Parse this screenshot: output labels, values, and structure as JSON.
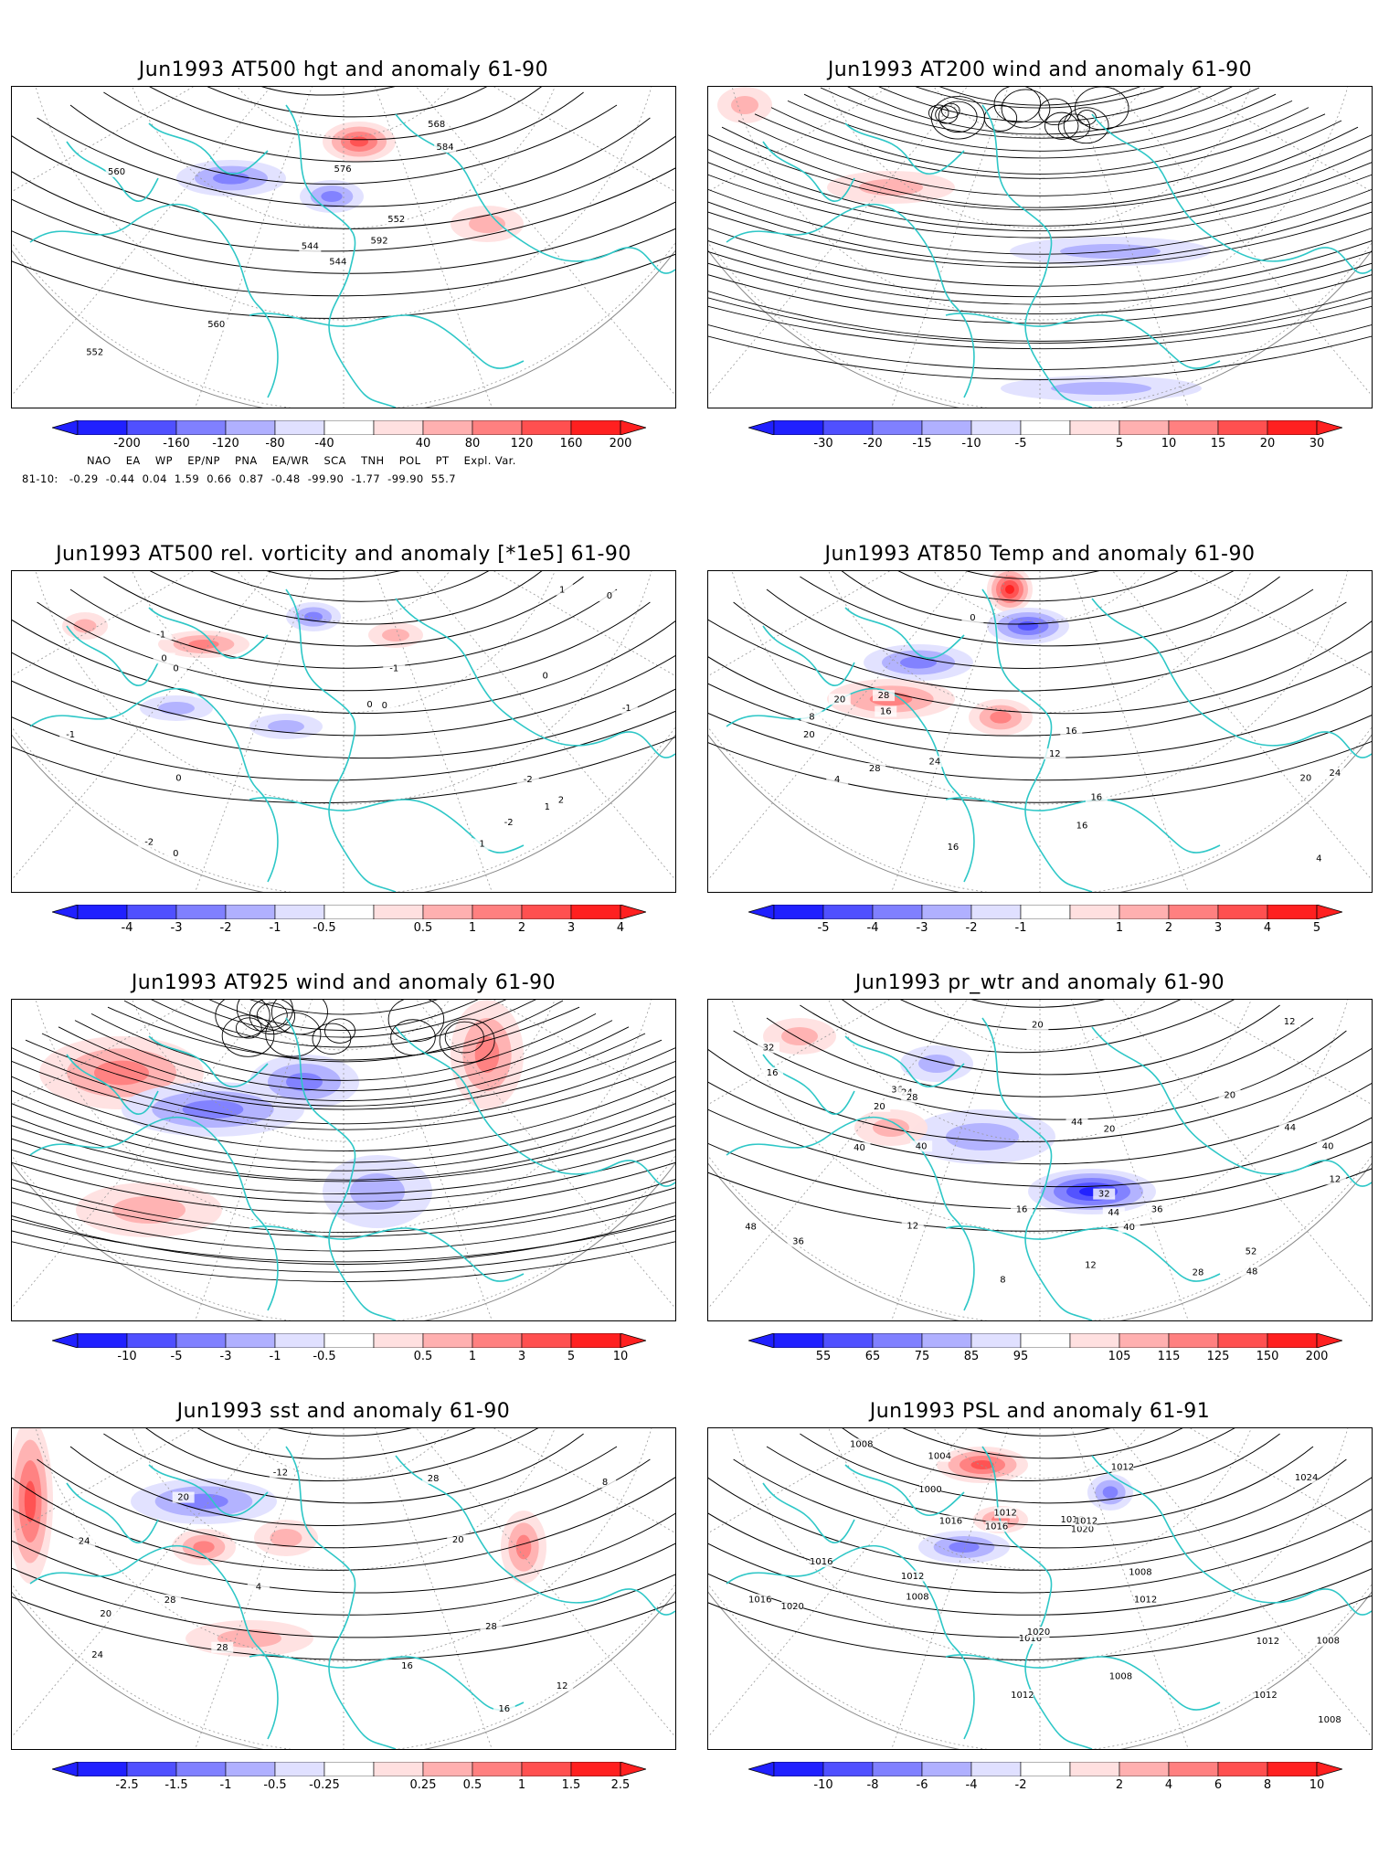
{
  "panels": [
    {
      "id": "p1",
      "title": "Jun1993 AT500 hgt and anomaly 61-90",
      "kind": "contour",
      "labels": [
        "544",
        "560",
        "544",
        "552",
        "552",
        "560",
        "568",
        "576",
        "584",
        "592"
      ],
      "colorbar": [
        "-200",
        "-160",
        "-120",
        "-80",
        "-40",
        "40",
        "80",
        "120",
        "160",
        "200"
      ]
    },
    {
      "id": "p2",
      "title": "Jun1993 AT200 wind and anomaly 61-90",
      "kind": "stream",
      "labels": [],
      "colorbar": [
        "-30",
        "-20",
        "-15",
        "-10",
        "-5",
        "5",
        "10",
        "15",
        "20",
        "30"
      ]
    },
    {
      "id": "p3",
      "title": "Jun1993 AT500 rel. vorticity and anomaly [*1e5] 61-90",
      "kind": "contour",
      "labels": [
        "0",
        "-2",
        "-1",
        "0",
        "1",
        "-2",
        "0",
        "2",
        "-1",
        "1",
        "0",
        "-1",
        "-2",
        "0",
        "1",
        "-1",
        "0",
        "0",
        "0"
      ],
      "colorbar": [
        "-4",
        "-3",
        "-2",
        "-1",
        "-0.5",
        "0.5",
        "1",
        "2",
        "3",
        "4"
      ]
    },
    {
      "id": "p4",
      "title": "Jun1993 AT850 Temp and anomaly 61-90",
      "kind": "contour",
      "labels": [
        "16",
        "20",
        "4",
        "0",
        "4",
        "8",
        "12",
        "16",
        "20",
        "24",
        "28",
        "24",
        "20",
        "16",
        "16",
        "28",
        "16"
      ],
      "colorbar": [
        "-5",
        "-4",
        "-3",
        "-2",
        "-1",
        "1",
        "2",
        "3",
        "4",
        "5"
      ]
    },
    {
      "id": "p5",
      "title": "Jun1993 AT925 wind and anomaly 61-90",
      "kind": "stream",
      "labels": [],
      "colorbar": [
        "-10",
        "-5",
        "-3",
        "-1",
        "-0.5",
        "0.5",
        "1",
        "3",
        "5",
        "10"
      ]
    },
    {
      "id": "p6",
      "title": "Jun1993 pr_wtr and anomaly 61-90",
      "kind": "contour",
      "labels": [
        "44",
        "52",
        "40",
        "36",
        "20",
        "12",
        "8",
        "12",
        "16",
        "20",
        "24",
        "32",
        "28",
        "20",
        "16",
        "12",
        "12",
        "20",
        "28",
        "32",
        "36",
        "40",
        "44",
        "48",
        "40",
        "44",
        "36",
        "40",
        "48"
      ],
      "colorbar": [
        "55",
        "65",
        "75",
        "85",
        "95",
        "105",
        "115",
        "125",
        "150",
        "200"
      ]
    },
    {
      "id": "p7",
      "title": "Jun1993 sst and anomaly 61-90",
      "kind": "contour",
      "labels": [
        "28",
        "28",
        "12",
        "20",
        "4",
        "8",
        "-12",
        "16",
        "20",
        "24",
        "28",
        "24",
        "20",
        "28",
        "16"
      ],
      "colorbar": [
        "-2.5",
        "-1.5",
        "-1",
        "-0.5",
        "-0.25",
        "0.25",
        "0.5",
        "1",
        "1.5",
        "2.5"
      ]
    },
    {
      "id": "p8",
      "title": "Jun1993 PSL and anomaly 61-91",
      "kind": "contour",
      "labels": [
        "1012",
        "1016",
        "1012",
        "1016",
        "1016",
        "1012",
        "1016",
        "1008",
        "1008",
        "1008",
        "1000",
        "1020",
        "1016",
        "1012",
        "1020",
        "1024",
        "1004",
        "1020",
        "1012",
        "1008",
        "1008",
        "1012",
        "1008",
        "1016",
        "1012",
        "1012"
      ],
      "colorbar": [
        "-10",
        "-8",
        "-6",
        "-4",
        "-2",
        "2",
        "4",
        "6",
        "8",
        "10"
      ]
    }
  ],
  "index_table": {
    "header": [
      "NAO",
      "EA",
      "WP",
      "EP/NP",
      "PNA",
      "EA/WR",
      "SCA",
      "TNH",
      "POL",
      "PT",
      "Expl. Var."
    ],
    "row_label": "81-10:",
    "values": [
      "-0.29",
      "-0.44",
      "0.04",
      "1.59",
      "0.66",
      "0.87",
      "-0.48",
      "-99.90",
      "-1.77",
      "-99.90",
      "55.7"
    ]
  },
  "colors": {
    "coast": "#2ec7c7",
    "blue_scale": [
      "#2020ff",
      "#5050ff",
      "#8080ff",
      "#b0b0ff",
      "#e0e0ff"
    ],
    "red_scale": [
      "#ffe0e0",
      "#ffb0b0",
      "#ff8080",
      "#ff5050",
      "#ff2020"
    ]
  }
}
